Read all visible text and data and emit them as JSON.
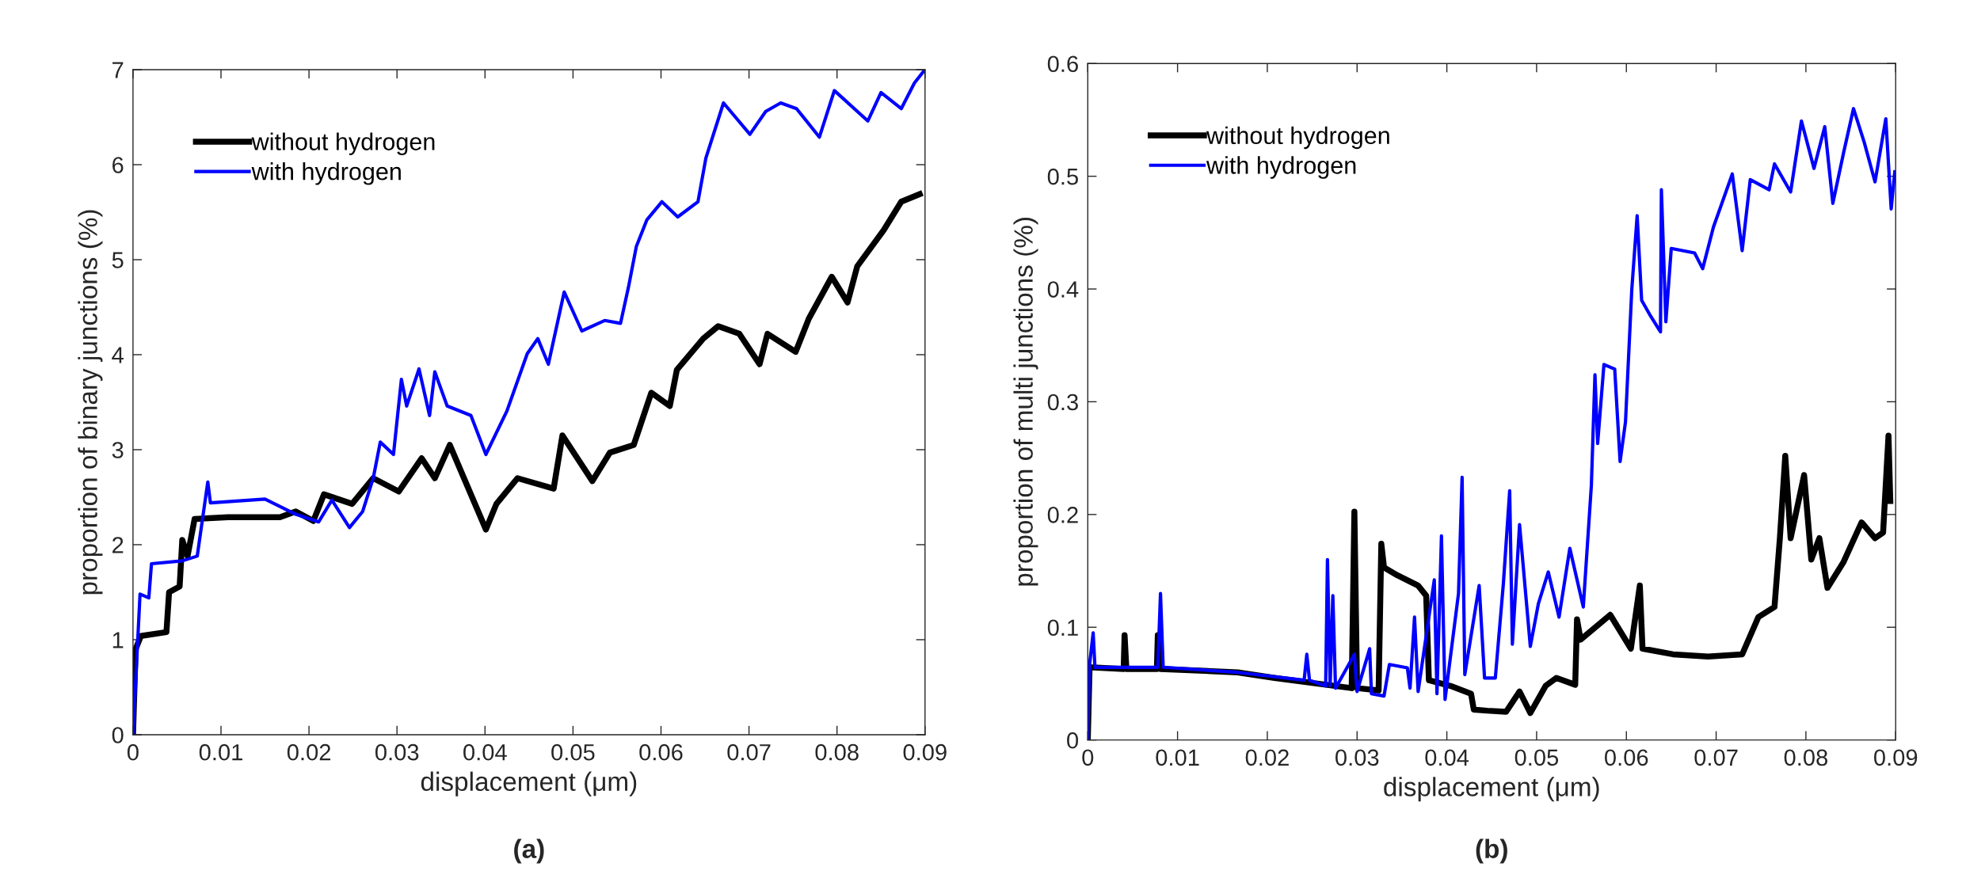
{
  "chart_data": [
    {
      "type": "line",
      "xlabel": "displacement (μm)",
      "ylabel": "proportion of binary junctions (%)",
      "xlim": [
        0,
        0.09
      ],
      "ylim": [
        0,
        7
      ],
      "xticks": [
        0,
        0.01,
        0.02,
        0.03,
        0.04,
        0.05,
        0.06,
        0.07,
        0.08,
        0.09
      ],
      "yticks": [
        0,
        1,
        2,
        3,
        4,
        5,
        6,
        7
      ],
      "grid": false,
      "legend": "top left",
      "marker": "none",
      "line_style": "solid",
      "annotations": [
        "(a)"
      ],
      "series": [
        {
          "name": "without hydrogen",
          "color": "#000000",
          "x": [
            0,
            0.0003,
            0.0009,
            0.0038,
            0.0041,
            0.0053,
            0.0056,
            0.0062,
            0.007,
            0.0108,
            0.0167,
            0.0185,
            0.0205,
            0.0217,
            0.0249,
            0.0273,
            0.0302,
            0.0328,
            0.0343,
            0.036,
            0.0401,
            0.0413,
            0.0437,
            0.0478,
            0.0488,
            0.0522,
            0.0542,
            0.0569,
            0.0589,
            0.061,
            0.0618,
            0.0648,
            0.0665,
            0.0689,
            0.0712,
            0.0721,
            0.0753,
            0.0768,
            0.0794,
            0.0812,
            0.0823,
            0.0853,
            0.0873,
            0.0894
          ],
          "values": [
            0,
            0.9,
            1.04,
            1.08,
            1.5,
            1.56,
            2.05,
            1.88,
            2.27,
            2.29,
            2.29,
            2.35,
            2.25,
            2.53,
            2.43,
            2.7,
            2.56,
            2.91,
            2.7,
            3.05,
            2.16,
            2.43,
            2.7,
            2.59,
            3.15,
            2.67,
            2.97,
            3.05,
            3.6,
            3.46,
            3.84,
            4.17,
            4.3,
            4.22,
            3.9,
            4.22,
            4.03,
            4.38,
            4.82,
            4.55,
            4.93,
            5.31,
            5.61,
            5.69
          ]
        },
        {
          "name": "with hydrogen",
          "color": "#0000ff",
          "x": [
            0,
            0.0008,
            0.0018,
            0.0021,
            0.0056,
            0.0073,
            0.0079,
            0.0085,
            0.0088,
            0.015,
            0.0185,
            0.0211,
            0.0226,
            0.0246,
            0.0261,
            0.0273,
            0.0281,
            0.0296,
            0.0305,
            0.0311,
            0.0325,
            0.0337,
            0.0343,
            0.0357,
            0.0384,
            0.0401,
            0.0425,
            0.0448,
            0.046,
            0.0472,
            0.049,
            0.051,
            0.0536,
            0.0554,
            0.0563,
            0.0572,
            0.0584,
            0.0601,
            0.0619,
            0.0642,
            0.0651,
            0.0671,
            0.0701,
            0.0719,
            0.0736,
            0.0754,
            0.078,
            0.0797,
            0.0835,
            0.085,
            0.0873,
            0.0888,
            0.0899
          ],
          "values": [
            0,
            1.48,
            1.44,
            1.8,
            1.83,
            1.88,
            2.27,
            2.66,
            2.44,
            2.48,
            2.32,
            2.24,
            2.47,
            2.18,
            2.35,
            2.7,
            3.08,
            2.95,
            3.74,
            3.46,
            3.85,
            3.36,
            3.82,
            3.46,
            3.36,
            2.95,
            3.41,
            4.01,
            4.17,
            3.9,
            4.66,
            4.25,
            4.36,
            4.33,
            4.71,
            5.14,
            5.42,
            5.61,
            5.45,
            5.61,
            6.07,
            6.65,
            6.32,
            6.56,
            6.65,
            6.59,
            6.29,
            6.78,
            6.46,
            6.76,
            6.59,
            6.86,
            6.99
          ]
        }
      ]
    },
    {
      "type": "line",
      "xlabel": "displacement (μm)",
      "ylabel": "proportion of multi junctions (%)",
      "xlim": [
        0,
        0.09
      ],
      "ylim": [
        0,
        0.6
      ],
      "xticks": [
        0,
        0.01,
        0.02,
        0.03,
        0.04,
        0.05,
        0.06,
        0.07,
        0.08,
        0.09
      ],
      "yticks": [
        0,
        0.1,
        0.2,
        0.3,
        0.4,
        0.5,
        0.6
      ],
      "grid": false,
      "legend": "top left",
      "marker": "none",
      "line_style": "solid",
      "annotations": [
        "(b)"
      ],
      "series": [
        {
          "name": "without hydrogen",
          "color": "#000000",
          "x": [
            0,
            0.0002,
            0.004,
            0.0041,
            0.0043,
            0.0077,
            0.0078,
            0.0081,
            0.0167,
            0.0208,
            0.0294,
            0.0297,
            0.03,
            0.0324,
            0.0327,
            0.033,
            0.0345,
            0.0368,
            0.0377,
            0.038,
            0.0404,
            0.0427,
            0.043,
            0.0445,
            0.0466,
            0.0481,
            0.0493,
            0.051,
            0.0522,
            0.0543,
            0.0545,
            0.0549,
            0.0582,
            0.0605,
            0.0615,
            0.0618,
            0.0652,
            0.0691,
            0.0729,
            0.0747,
            0.0765,
            0.0771,
            0.0777,
            0.0783,
            0.0798,
            0.0806,
            0.0815,
            0.0824,
            0.0842,
            0.0862,
            0.0877,
            0.0886,
            0.0892,
            0.0894
          ],
          "values": [
            0,
            0.0645,
            0.063,
            0.093,
            0.063,
            0.063,
            0.093,
            0.063,
            0.06,
            0.055,
            0.046,
            0.2025,
            0.046,
            0.044,
            0.174,
            0.153,
            0.146,
            0.137,
            0.128,
            0.053,
            0.048,
            0.041,
            0.027,
            0.026,
            0.025,
            0.043,
            0.024,
            0.048,
            0.055,
            0.049,
            0.107,
            0.089,
            0.111,
            0.081,
            0.137,
            0.081,
            0.076,
            0.074,
            0.076,
            0.109,
            0.118,
            0.179,
            0.252,
            0.179,
            0.235,
            0.16,
            0.179,
            0.135,
            0.158,
            0.193,
            0.179,
            0.184,
            0.27,
            0.212
          ]
        },
        {
          "name": "with hydrogen",
          "color": "#0000ff",
          "x": [
            0,
            0.0002,
            0.0006,
            0.0008,
            0.0078,
            0.0081,
            0.0084,
            0.0167,
            0.0241,
            0.0244,
            0.0247,
            0.0265,
            0.0267,
            0.027,
            0.0273,
            0.0276,
            0.0297,
            0.03,
            0.0314,
            0.0316,
            0.033,
            0.0336,
            0.0356,
            0.0359,
            0.0364,
            0.0368,
            0.0386,
            0.0389,
            0.0394,
            0.0398,
            0.0413,
            0.0417,
            0.042,
            0.0436,
            0.0442,
            0.0454,
            0.0463,
            0.047,
            0.0473,
            0.0481,
            0.0493,
            0.0502,
            0.0513,
            0.0525,
            0.0537,
            0.0552,
            0.0561,
            0.0565,
            0.0568,
            0.0575,
            0.0587,
            0.0593,
            0.0599,
            0.0606,
            0.0612,
            0.0617,
            0.0627,
            0.0638,
            0.0639,
            0.0644,
            0.065,
            0.0676,
            0.0685,
            0.0697,
            0.0718,
            0.0729,
            0.0738,
            0.0759,
            0.0765,
            0.0783,
            0.0795,
            0.0809,
            0.0821,
            0.083,
            0.0842,
            0.0853,
            0.0865,
            0.0877,
            0.0889,
            0.0895,
            0.0899
          ],
          "values": [
            0,
            0.067,
            0.095,
            0.0645,
            0.0645,
            0.13,
            0.0645,
            0.06,
            0.053,
            0.076,
            0.053,
            0.048,
            0.16,
            0.048,
            0.128,
            0.046,
            0.076,
            0.043,
            0.081,
            0.041,
            0.039,
            0.067,
            0.064,
            0.046,
            0.109,
            0.043,
            0.142,
            0.041,
            0.181,
            0.036,
            0.13,
            0.233,
            0.058,
            0.137,
            0.055,
            0.055,
            0.139,
            0.221,
            0.085,
            0.191,
            0.083,
            0.121,
            0.149,
            0.109,
            0.17,
            0.118,
            0.226,
            0.324,
            0.263,
            0.333,
            0.329,
            0.247,
            0.282,
            0.399,
            0.465,
            0.39,
            0.376,
            0.362,
            0.488,
            0.371,
            0.436,
            0.432,
            0.418,
            0.455,
            0.502,
            0.434,
            0.497,
            0.488,
            0.511,
            0.486,
            0.549,
            0.507,
            0.544,
            0.476,
            0.521,
            0.56,
            0.53,
            0.495,
            0.551,
            0.471,
            0.504
          ]
        }
      ]
    }
  ]
}
